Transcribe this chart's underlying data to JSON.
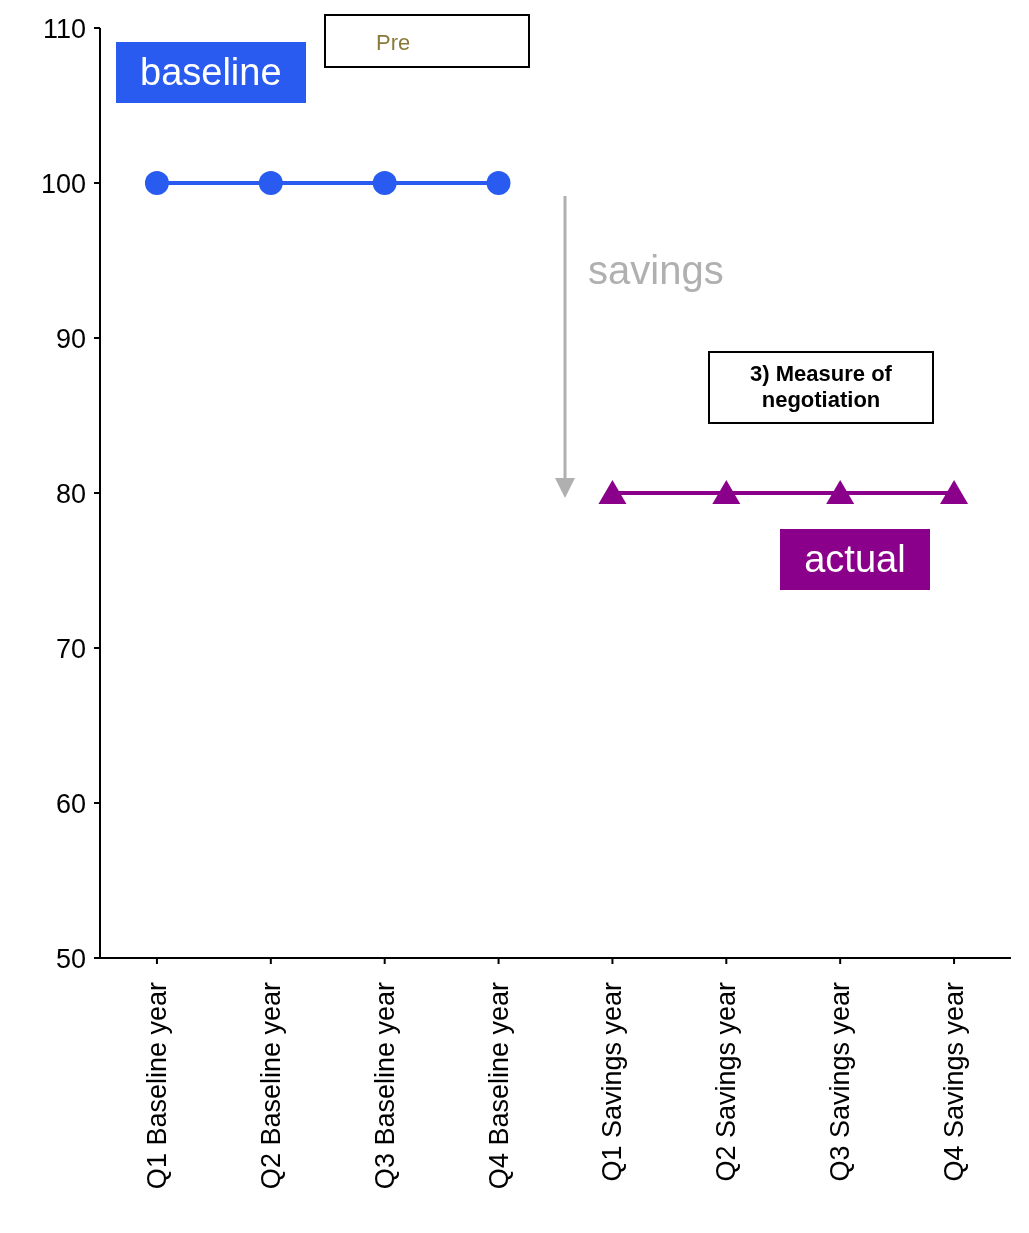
{
  "chart_data": {
    "type": "line",
    "categories": [
      "Q1 Baseline year",
      "Q2 Baseline year",
      "Q3 Baseline year",
      "Q4 Baseline year",
      "Q1 Savings year",
      "Q2 Savings year",
      "Q3 Savings year",
      "Q4 Savings year"
    ],
    "series": [
      {
        "name": "baseline",
        "color": "#2a5bf0",
        "marker": "circle",
        "values": [
          100,
          100,
          100,
          100,
          null,
          null,
          null,
          null
        ]
      },
      {
        "name": "actual",
        "color": "#8b008b",
        "marker": "triangle",
        "values": [
          null,
          null,
          null,
          null,
          80,
          80,
          80,
          80
        ]
      }
    ],
    "ylim": [
      50,
      110
    ],
    "yticks": [
      50,
      60,
      70,
      80,
      90,
      100,
      110
    ],
    "grid": false,
    "legend": false,
    "line_style": "solid",
    "annotations": [
      "Pre",
      "savings",
      "3) Measure of negotiation"
    ]
  }
}
